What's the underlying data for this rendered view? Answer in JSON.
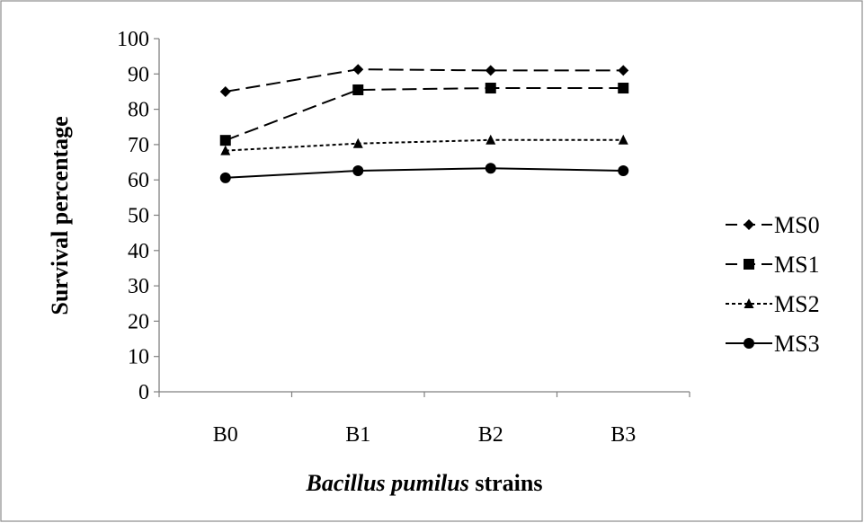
{
  "chart_data": {
    "type": "line",
    "title": "",
    "xlabel": "Bacillus pumilus strains",
    "xlabel_parts": [
      {
        "text": "Bacillus pumilus",
        "italic": true
      },
      {
        "text": " strains",
        "italic": false
      }
    ],
    "ylabel": "Survival percentage",
    "categories": [
      "B0",
      "B1",
      "B2",
      "B3"
    ],
    "ylim": [
      0,
      100
    ],
    "yticks": [
      0,
      10,
      20,
      30,
      40,
      50,
      60,
      70,
      80,
      90,
      100
    ],
    "grid": false,
    "legend_position": "right",
    "series": [
      {
        "name": "MS0",
        "values": [
          85,
          91.3,
          91,
          91
        ],
        "marker": "diamond",
        "dash": "long-dash"
      },
      {
        "name": "MS1",
        "values": [
          71.2,
          85.5,
          86,
          86
        ],
        "marker": "square",
        "dash": "long-dash"
      },
      {
        "name": "MS2",
        "values": [
          68.3,
          70.3,
          71.3,
          71.3
        ],
        "marker": "triangle",
        "dash": "short-dash"
      },
      {
        "name": "MS3",
        "values": [
          60.6,
          62.6,
          63.3,
          62.6
        ],
        "marker": "circle",
        "dash": "solid"
      }
    ]
  }
}
